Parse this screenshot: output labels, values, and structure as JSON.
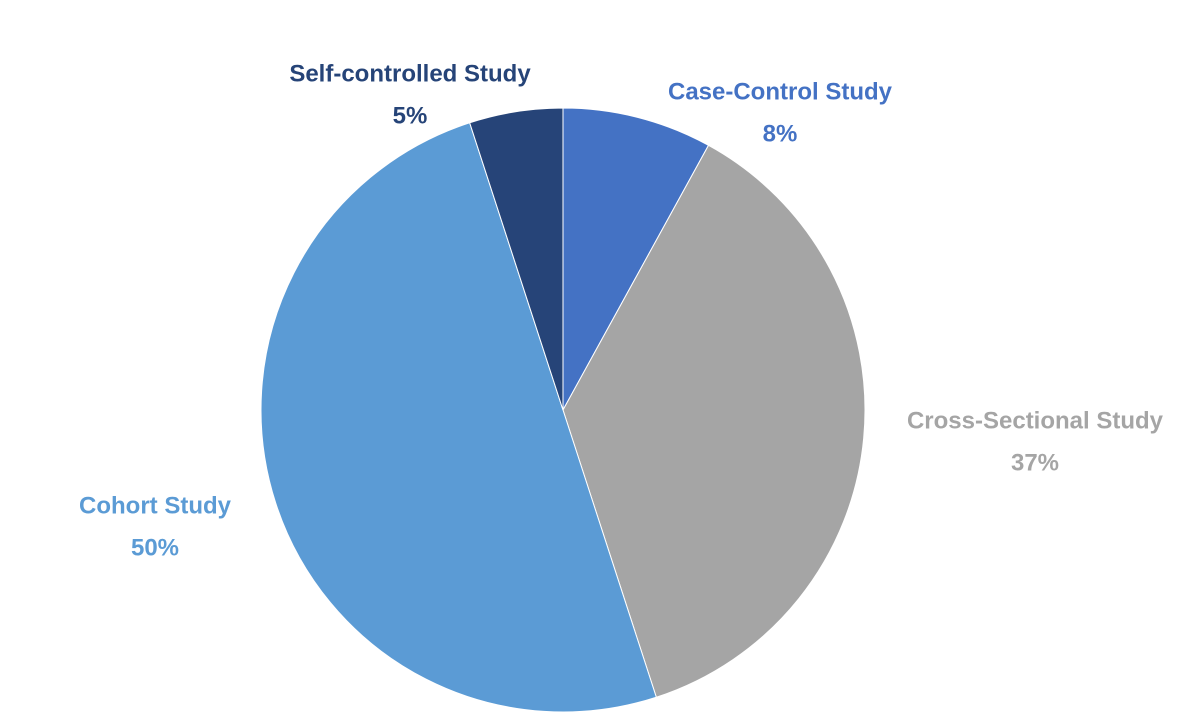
{
  "chart_data": {
    "type": "pie",
    "categories": [
      "Case-Control Study",
      "Cross-Sectional Study",
      "Cohort Study",
      "Self-controlled Study"
    ],
    "values": [
      8,
      37,
      50,
      5
    ],
    "value_labels": [
      "8%",
      "37%",
      "50%",
      "5%"
    ],
    "colors": [
      "#4472c4",
      "#a5a5a5",
      "#5b9bd5",
      "#264478"
    ]
  }
}
